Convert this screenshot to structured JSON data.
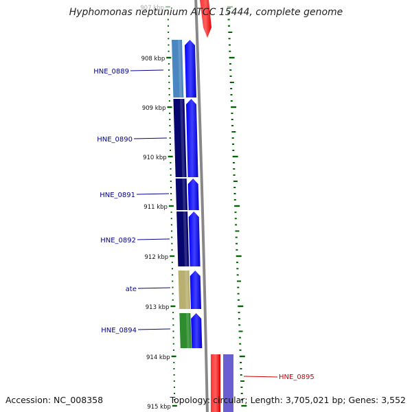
{
  "title": "Hyphomonas neptunium ATCC 15444, complete genome",
  "footer": {
    "accession": "Accession: NC_008358",
    "topology": "Topology: circular; Length: 3,705,021 bp; Genes: 3,552"
  },
  "ticks": [
    {
      "label": "907 kbp",
      "faded": true
    },
    {
      "label": "908 kbp"
    },
    {
      "label": "909 kbp"
    },
    {
      "label": "910 kbp"
    },
    {
      "label": "911 kbp"
    },
    {
      "label": "912 kbp"
    },
    {
      "label": "913 kbp"
    },
    {
      "label": "914 kbp"
    },
    {
      "label": "915 kbp"
    }
  ],
  "genes": [
    {
      "label": "HNE_0889",
      "strand": "minus",
      "color": "#4a86c0"
    },
    {
      "label": "HNE_0890",
      "strand": "minus",
      "color": "#06066e"
    },
    {
      "label": "HNE_0891",
      "strand": "minus",
      "color": "#06066e"
    },
    {
      "label": "HNE_0892",
      "strand": "minus",
      "color": "#06066e"
    },
    {
      "label": "ate",
      "strand": "minus",
      "color": "#b8b070"
    },
    {
      "label": "HNE_0894",
      "strand": "minus",
      "color": "#2e8c2e"
    },
    {
      "label": "HNE_0895",
      "strand": "plus",
      "color": "#ff0000"
    }
  ],
  "colors": {
    "minus_label": "#00008b",
    "plus_label": "#cc0000",
    "arrow_minus": "#0000ff",
    "arrow_plus": "#ff0000",
    "backbone": "#888888",
    "tick": "#006400",
    "plus_block_extra": "#6a5fd0"
  }
}
